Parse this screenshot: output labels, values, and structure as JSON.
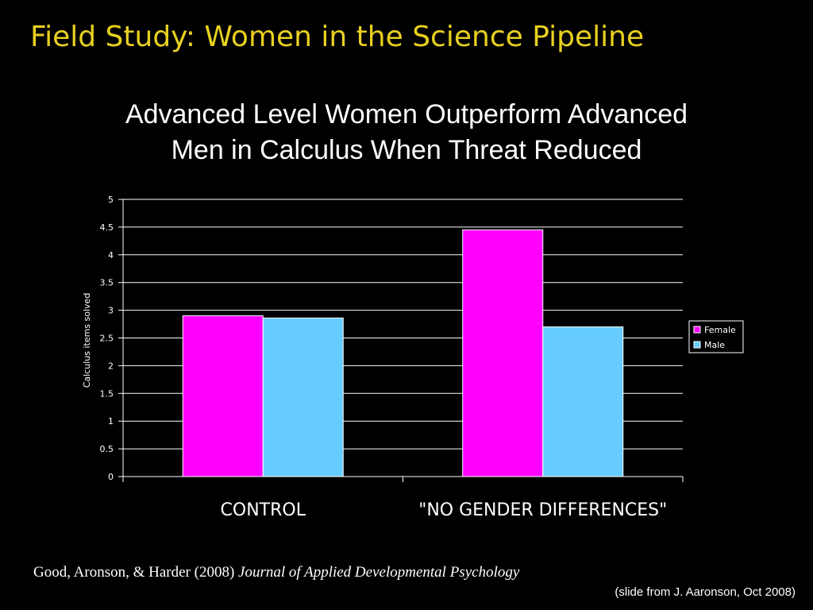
{
  "slide": {
    "title": "Field Study: Women in the Science Pipeline",
    "citation_authors": "Good, Aronson, & Harder (2008)",
    "citation_journal": "Journal of Applied Developmental Psychology",
    "credit": "(slide from J. Aaronson, Oct 2008)"
  },
  "chart_data": {
    "type": "bar",
    "title_lines": [
      "Advanced Level Women Outperform Advanced",
      "Men in Calculus When Threat Reduced"
    ],
    "categories": [
      "CONTROL",
      "\"NO GENDER DIFFERENCES\""
    ],
    "series": [
      {
        "name": "Female",
        "values": [
          2.9,
          4.45
        ],
        "color": "#ff00ff"
      },
      {
        "name": "Male",
        "values": [
          2.86,
          2.7
        ],
        "color": "#66ccff"
      }
    ],
    "ylabel": "Calculus items solved",
    "xlabel": "",
    "ylim": [
      0,
      5
    ],
    "yticks": [
      "0",
      "0.5",
      "1",
      "1.5",
      "2",
      "2.5",
      "3",
      "3.5",
      "4",
      "4.5",
      "5"
    ],
    "grid": true,
    "legend": "right"
  }
}
